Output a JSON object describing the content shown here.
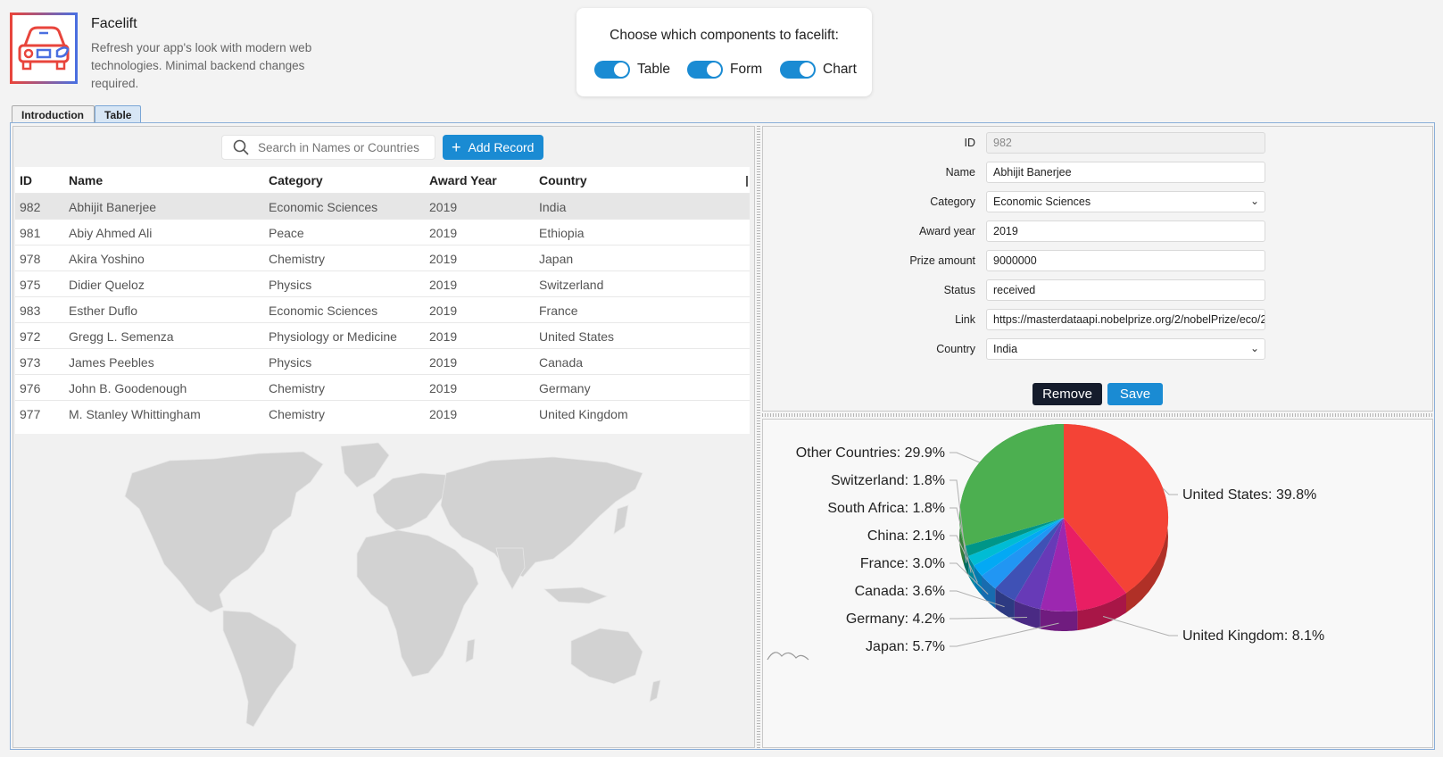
{
  "app": {
    "title": "Facelift",
    "description": "Refresh your app's look with modern web technologies. Minimal backend changes required."
  },
  "toggles": {
    "title": "Choose which components to facelift:",
    "items": [
      {
        "label": "Table",
        "on": true
      },
      {
        "label": "Form",
        "on": true
      },
      {
        "label": "Chart",
        "on": true
      }
    ]
  },
  "tabs": [
    {
      "label": "Introduction",
      "active": false
    },
    {
      "label": "Table",
      "active": true
    }
  ],
  "toolbar": {
    "search_placeholder": "Search in Names or Countries",
    "add_label": "Add Record"
  },
  "table": {
    "columns": [
      "ID",
      "Name",
      "Category",
      "Award Year",
      "Country"
    ],
    "rows": [
      [
        "982",
        "Abhijit Banerjee",
        "Economic Sciences",
        "2019",
        "India"
      ],
      [
        "981",
        "Abiy Ahmed Ali",
        "Peace",
        "2019",
        "Ethiopia"
      ],
      [
        "978",
        "Akira Yoshino",
        "Chemistry",
        "2019",
        "Japan"
      ],
      [
        "975",
        "Didier Queloz",
        "Physics",
        "2019",
        "Switzerland"
      ],
      [
        "983",
        "Esther Duflo",
        "Economic Sciences",
        "2019",
        "France"
      ],
      [
        "972",
        "Gregg L. Semenza",
        "Physiology or Medicine",
        "2019",
        "United States"
      ],
      [
        "973",
        "James Peebles",
        "Physics",
        "2019",
        "Canada"
      ],
      [
        "976",
        "John B. Goodenough",
        "Chemistry",
        "2019",
        "Germany"
      ],
      [
        "977",
        "M. Stanley Whittingham",
        "Chemistry",
        "2019",
        "United Kingdom"
      ]
    ],
    "selected_index": 0
  },
  "form": {
    "id_label": "ID",
    "id_value": "982",
    "name_label": "Name",
    "name_value": "Abhijit Banerjee",
    "category_label": "Category",
    "category_value": "Economic Sciences",
    "year_label": "Award year",
    "year_value": "2019",
    "prize_label": "Prize amount",
    "prize_value": "9000000",
    "status_label": "Status",
    "status_value": "received",
    "link_label": "Link",
    "link_value": "https://masterdataapi.nobelprize.org/2/nobelPrize/eco/2",
    "country_label": "Country",
    "country_value": "India",
    "remove_label": "Remove",
    "save_label": "Save"
  },
  "chart_data": {
    "type": "pie",
    "slices": [
      {
        "label": "United States",
        "value": 39.8,
        "text": "United States: 39.8%",
        "color": "#f44336"
      },
      {
        "label": "United Kingdom",
        "value": 8.1,
        "text": "United Kingdom: 8.1%",
        "color": "#e91e63"
      },
      {
        "label": "Japan",
        "value": 5.7,
        "text": "Japan: 5.7%",
        "color": "#9c27b0"
      },
      {
        "label": "Germany",
        "value": 4.2,
        "text": "Germany: 4.2%",
        "color": "#673ab7"
      },
      {
        "label": "Canada",
        "value": 3.6,
        "text": "Canada: 3.6%",
        "color": "#3f51b5"
      },
      {
        "label": "France",
        "value": 3.0,
        "text": "France: 3.0%",
        "color": "#2196f3"
      },
      {
        "label": "China",
        "value": 2.1,
        "text": "China: 2.1%",
        "color": "#03a9f4"
      },
      {
        "label": "South Africa",
        "value": 1.8,
        "text": "South Africa: 1.8%",
        "color": "#00bcd4"
      },
      {
        "label": "Switzerland",
        "value": 1.8,
        "text": "Switzerland: 1.8%",
        "color": "#009688"
      },
      {
        "label": "Other Countries",
        "value": 29.9,
        "text": "Other Countries: 29.9%",
        "color": "#4caf50"
      }
    ]
  },
  "colors": {
    "accent": "#1a8bd3",
    "dark_button": "#151c2c",
    "map_land": "#d2d2d2"
  }
}
